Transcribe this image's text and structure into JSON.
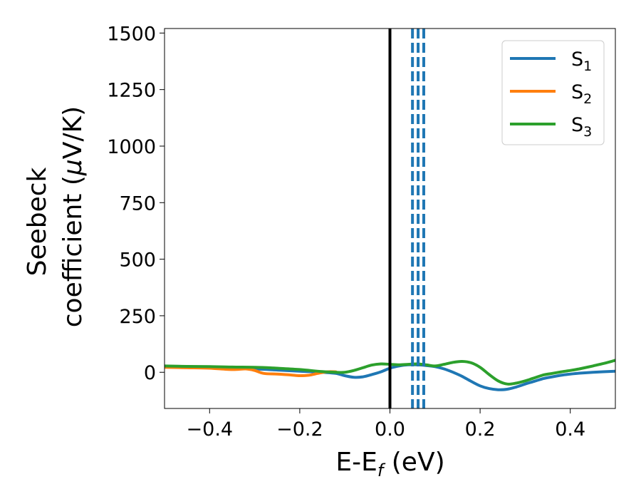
{
  "chart_data": {
    "type": "line",
    "ylabel_line1": "Seebeck",
    "ylabel_line2_prefix": "coefficient  (",
    "ylabel_mu": "μ",
    "ylabel_line2_suffix": "V/K)",
    "xlabel_prefix": "E-E",
    "xlabel_sub": "f",
    "xlabel_suffix": " (eV)",
    "xlim": [
      -0.5,
      0.5
    ],
    "ylim": [
      -160,
      1520
    ],
    "xticks": [
      -0.4,
      -0.2,
      0.0,
      0.2,
      0.4
    ],
    "xtick_labels": [
      "−0.4",
      "−0.2",
      "0.0",
      "0.2",
      "0.4"
    ],
    "yticks": [
      0,
      250,
      500,
      750,
      1000,
      1250,
      1500
    ],
    "ytick_labels": [
      "0",
      "250",
      "500",
      "750",
      "1000",
      "1250",
      "1500"
    ],
    "legend_position": "top-right",
    "series": [
      {
        "name": "S",
        "sub": "1",
        "color": "#1f77b4",
        "points": [
          [
            -0.5,
            25
          ],
          [
            -0.45,
            22
          ],
          [
            -0.4,
            20
          ],
          [
            -0.35,
            18
          ],
          [
            -0.3,
            15
          ],
          [
            -0.25,
            10
          ],
          [
            -0.2,
            5
          ],
          [
            -0.15,
            0
          ],
          [
            -0.12,
            -5
          ],
          [
            -0.1,
            -15
          ],
          [
            -0.08,
            -22
          ],
          [
            -0.06,
            -20
          ],
          [
            -0.04,
            -10
          ],
          [
            -0.02,
            2
          ],
          [
            0.0,
            18
          ],
          [
            0.02,
            28
          ],
          [
            0.04,
            33
          ],
          [
            0.06,
            33
          ],
          [
            0.08,
            30
          ],
          [
            0.1,
            25
          ],
          [
            0.12,
            15
          ],
          [
            0.14,
            0
          ],
          [
            0.16,
            -18
          ],
          [
            0.18,
            -40
          ],
          [
            0.2,
            -60
          ],
          [
            0.22,
            -72
          ],
          [
            0.24,
            -77
          ],
          [
            0.26,
            -75
          ],
          [
            0.28,
            -65
          ],
          [
            0.3,
            -52
          ],
          [
            0.32,
            -40
          ],
          [
            0.34,
            -28
          ],
          [
            0.36,
            -20
          ],
          [
            0.38,
            -13
          ],
          [
            0.4,
            -8
          ],
          [
            0.42,
            -4
          ],
          [
            0.45,
            0
          ],
          [
            0.5,
            5
          ]
        ]
      },
      {
        "name": "S",
        "sub": "2",
        "color": "#ff7f0e",
        "points": [
          [
            -0.5,
            22
          ],
          [
            -0.45,
            20
          ],
          [
            -0.4,
            18
          ],
          [
            -0.35,
            12
          ],
          [
            -0.32,
            15
          ],
          [
            -0.3,
            8
          ],
          [
            -0.28,
            -5
          ],
          [
            -0.25,
            -8
          ],
          [
            -0.22,
            -12
          ],
          [
            -0.2,
            -15
          ],
          [
            -0.18,
            -13
          ],
          [
            -0.16,
            -5
          ],
          [
            -0.14,
            2
          ],
          [
            -0.12,
            2
          ]
        ]
      },
      {
        "name": "S",
        "sub": "3",
        "color": "#2ca02c",
        "points": [
          [
            -0.5,
            28
          ],
          [
            -0.45,
            26
          ],
          [
            -0.4,
            25
          ],
          [
            -0.35,
            23
          ],
          [
            -0.3,
            22
          ],
          [
            -0.25,
            18
          ],
          [
            -0.2,
            12
          ],
          [
            -0.15,
            3
          ],
          [
            -0.12,
            0
          ],
          [
            -0.1,
            0
          ],
          [
            -0.08,
            8
          ],
          [
            -0.06,
            20
          ],
          [
            -0.04,
            32
          ],
          [
            -0.02,
            37
          ],
          [
            0.0,
            35
          ],
          [
            0.02,
            33
          ],
          [
            0.04,
            35
          ],
          [
            0.06,
            37
          ],
          [
            0.08,
            33
          ],
          [
            0.1,
            28
          ],
          [
            0.12,
            35
          ],
          [
            0.14,
            44
          ],
          [
            0.16,
            48
          ],
          [
            0.18,
            42
          ],
          [
            0.2,
            22
          ],
          [
            0.22,
            -10
          ],
          [
            0.24,
            -38
          ],
          [
            0.26,
            -52
          ],
          [
            0.28,
            -48
          ],
          [
            0.3,
            -38
          ],
          [
            0.32,
            -25
          ],
          [
            0.34,
            -12
          ],
          [
            0.36,
            -5
          ],
          [
            0.38,
            2
          ],
          [
            0.4,
            8
          ],
          [
            0.42,
            15
          ],
          [
            0.45,
            28
          ],
          [
            0.48,
            42
          ],
          [
            0.5,
            53
          ]
        ]
      }
    ],
    "vlines": [
      {
        "x": 0.0,
        "color": "#000000",
        "style": "solid"
      },
      {
        "x": 0.05,
        "color": "#1f77b4",
        "style": "dashed"
      },
      {
        "x": 0.0625,
        "color": "#1f77b4",
        "style": "dashed"
      },
      {
        "x": 0.075,
        "color": "#1f77b4",
        "style": "dashed"
      }
    ]
  }
}
